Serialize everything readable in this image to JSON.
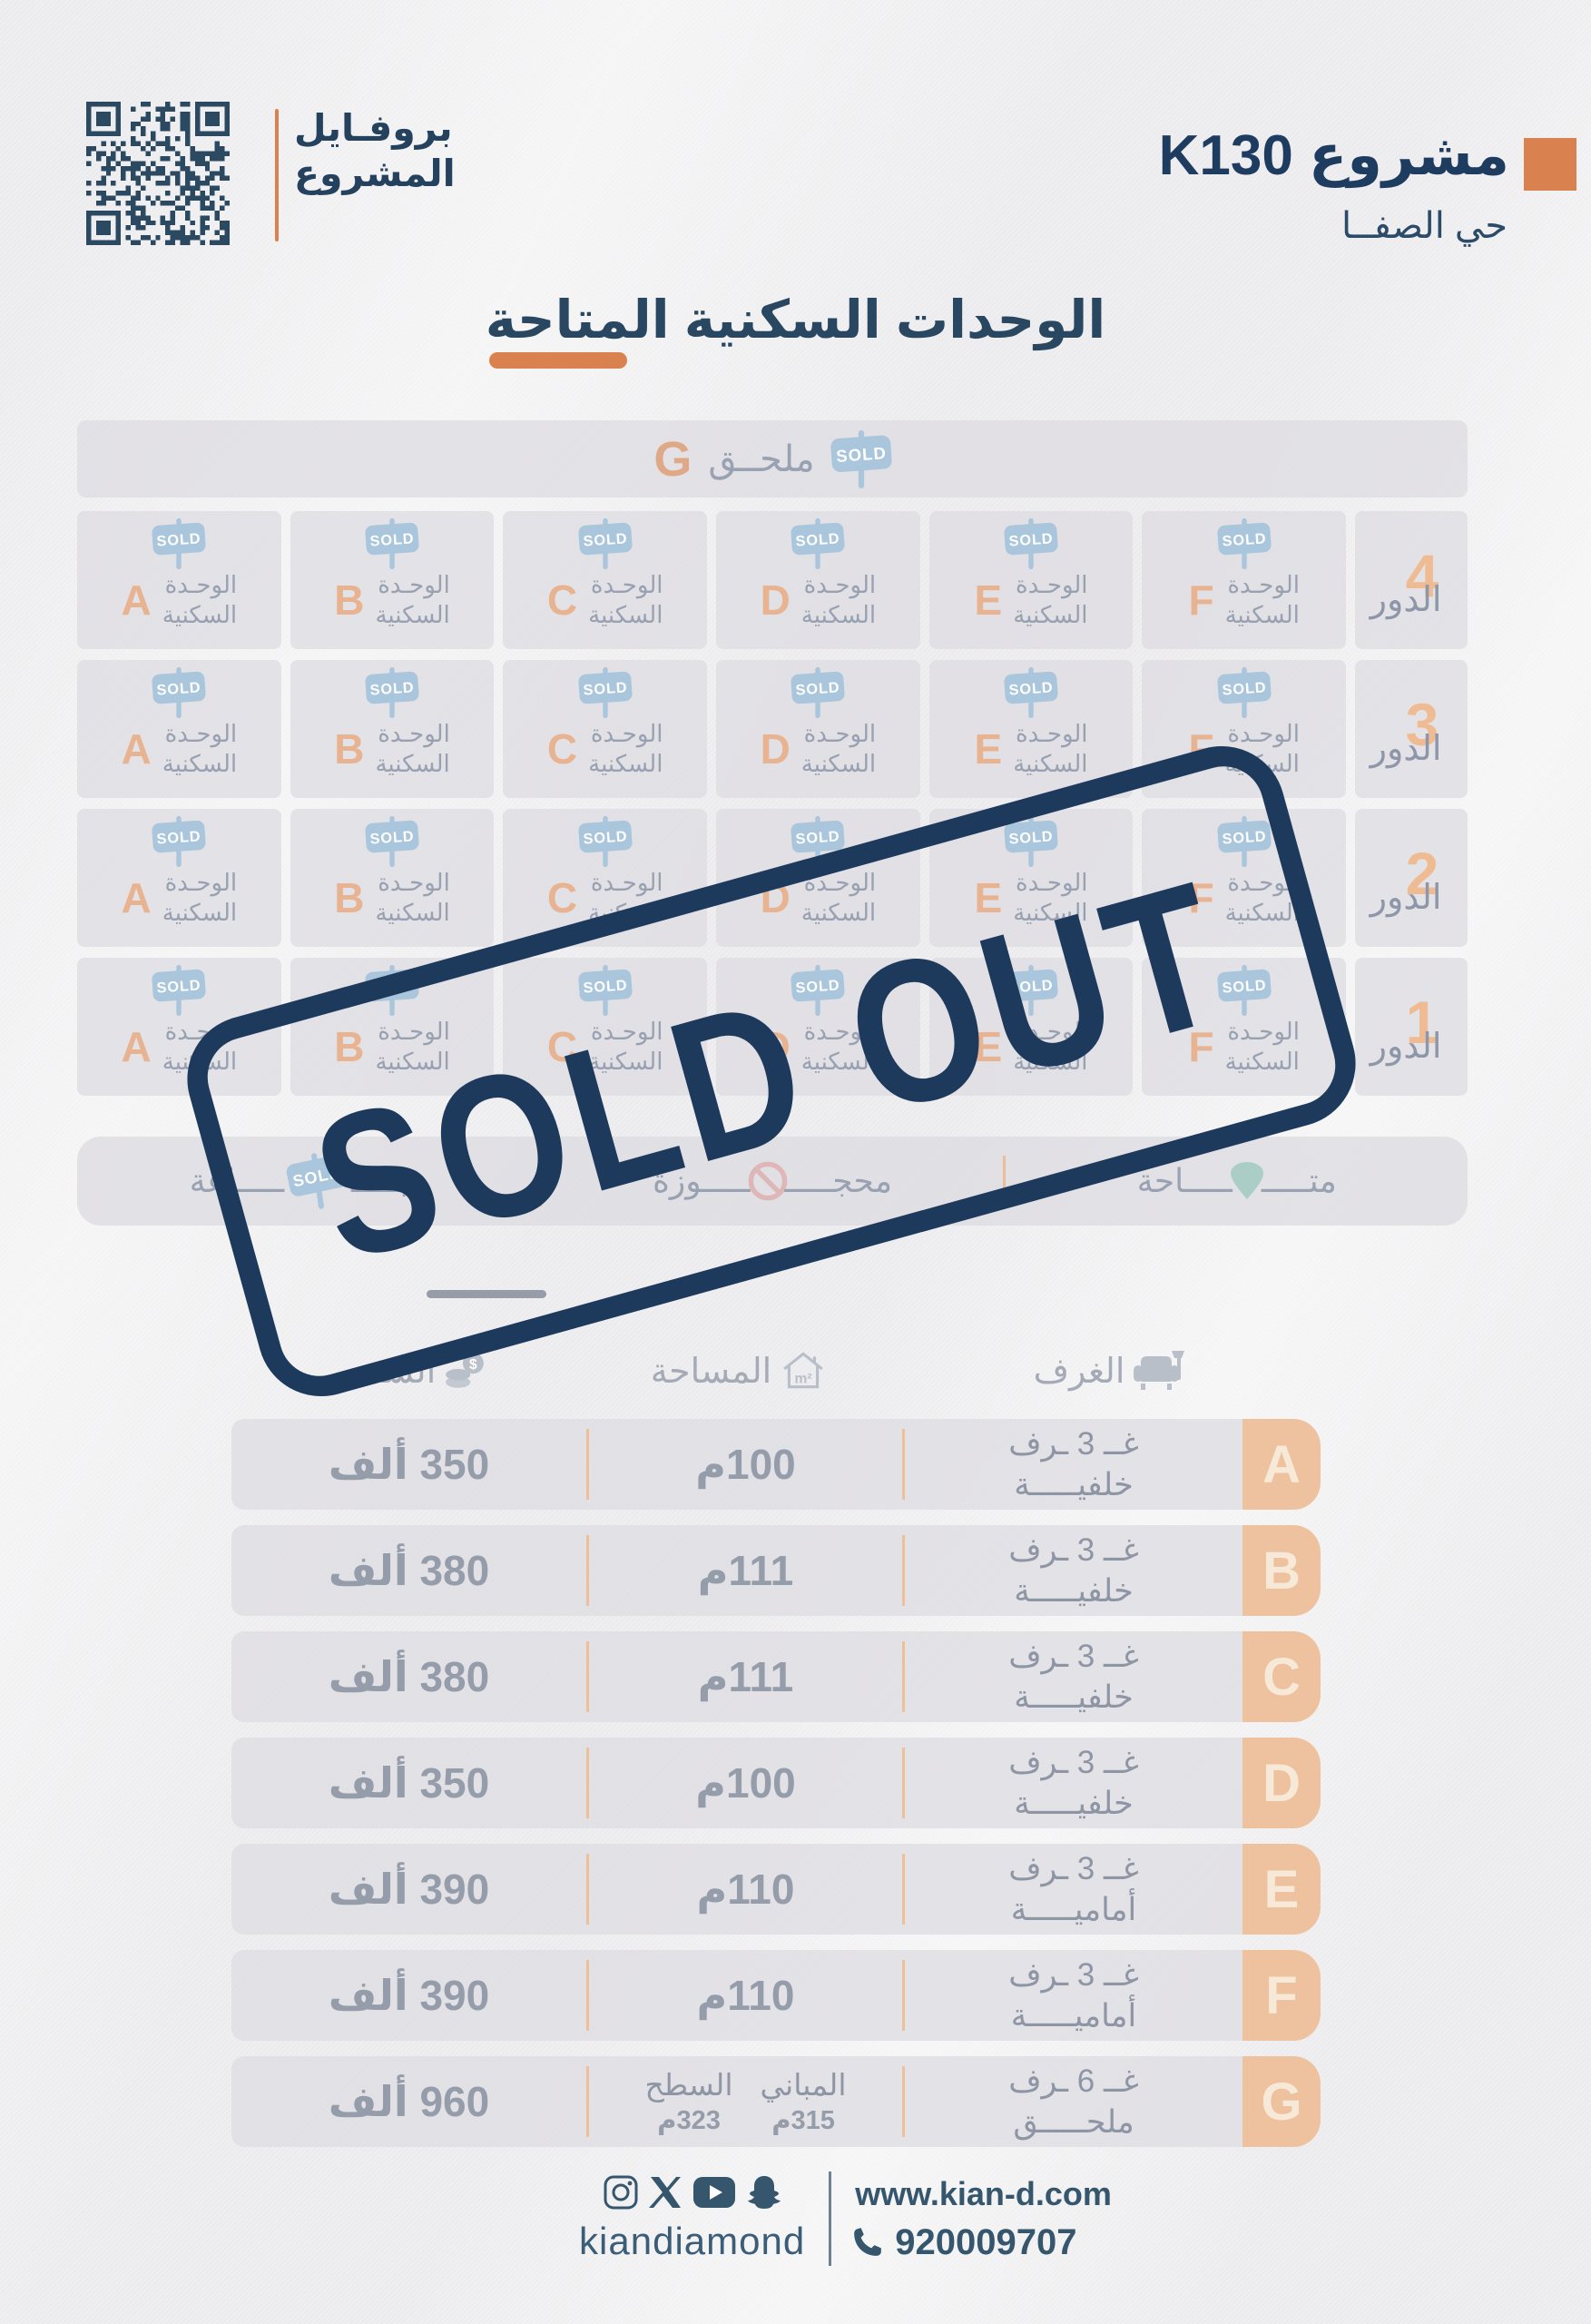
{
  "header": {
    "profile_line1": "بروفـايل",
    "profile_line2": "المشروع",
    "project_title": "مشروع K130",
    "district": "حي الصفــا"
  },
  "page_title": "الوحدات السكنية المتاحة",
  "grid": {
    "sold_label": "SOLD",
    "annex": {
      "label": "ملحــق",
      "letter": "G"
    },
    "unit_label_line1": "الوحـدة",
    "unit_label_line2": "السكنية",
    "floor_word": "الدور",
    "unit_letters": [
      "A",
      "B",
      "C",
      "D",
      "E",
      "F"
    ],
    "floors": [
      {
        "number": "4"
      },
      {
        "number": "3"
      },
      {
        "number": "2"
      },
      {
        "number": "1"
      }
    ],
    "legend": [
      {
        "id": "available",
        "start": "متـــــ",
        "end": "ـــــاحة"
      },
      {
        "id": "reserved",
        "start": "محجـــــ",
        "end": "ـــــوزة"
      },
      {
        "id": "sold",
        "start": "مبـــــ",
        "end": "ـــــاعة"
      }
    ]
  },
  "stamp_text": "SOLD OUT",
  "table": {
    "headers": [
      {
        "id": "rooms",
        "label": "الغرف"
      },
      {
        "id": "area",
        "label": "المساحة"
      },
      {
        "id": "price",
        "label": "السعــر"
      }
    ],
    "rows": [
      {
        "letter": "A",
        "rooms1": "غــ 3 ـرف",
        "rooms2": "خلفيـــــة",
        "area": "100م",
        "price": "350 ألف"
      },
      {
        "letter": "B",
        "rooms1": "غــ 3 ـرف",
        "rooms2": "خلفيـــــة",
        "area": "111م",
        "price": "380 ألف"
      },
      {
        "letter": "C",
        "rooms1": "غــ 3 ـرف",
        "rooms2": "خلفيـــــة",
        "area": "111م",
        "price": "380 ألف"
      },
      {
        "letter": "D",
        "rooms1": "غــ 3 ـرف",
        "rooms2": "خلفيـــــة",
        "area": "100م",
        "price": "350 ألف"
      },
      {
        "letter": "E",
        "rooms1": "غــ 3 ـرف",
        "rooms2": "أماميـــــة",
        "area": "110م",
        "price": "390 ألف"
      },
      {
        "letter": "F",
        "rooms1": "غــ 3 ـرف",
        "rooms2": "أماميـــــة",
        "area": "110م",
        "price": "390 ألف"
      },
      {
        "letter": "G",
        "rooms1": "غــ 6 ـرف",
        "rooms2": "ملحـــــق",
        "areas": [
          {
            "label": "المباني",
            "value": "315م"
          },
          {
            "label": "السطح",
            "value": "323م"
          }
        ],
        "price": "960 ألف"
      }
    ]
  },
  "footer": {
    "icons": [
      "instagram",
      "x",
      "youtube",
      "snapchat"
    ],
    "handle": "kiandiamond",
    "website": "www.kian-d.com",
    "phone": "920009707"
  },
  "colors": {
    "navy": "#1d3a5c",
    "orange": "#d9824f",
    "peach_letter": "#e8b390",
    "tab_peach": "#eec29f",
    "sold_badge_blue": "#a9c6dc",
    "cell_gray": "#e3e2e7",
    "text_gray": "#98a1b1",
    "legend_available_teal": "#86c3b2",
    "legend_reserved_red": "#dd8f8f"
  }
}
